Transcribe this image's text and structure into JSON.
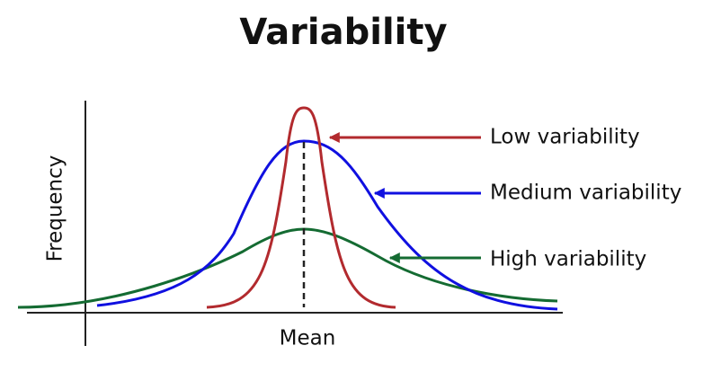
{
  "title": "Variability",
  "axes": {
    "y_label": "Frequency",
    "x_label": "Mean"
  },
  "labels": [
    "Low variability",
    "Medium variability",
    "High variability"
  ]
}
